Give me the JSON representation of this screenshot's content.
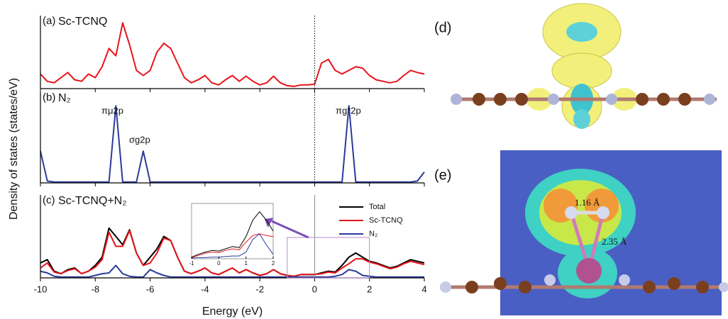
{
  "chart_data": [
    {
      "type": "line",
      "panel_label": "(a)",
      "title": "Sc-TCNQ",
      "xlim": [
        -10,
        4
      ],
      "ylim": [
        0,
        100
      ],
      "vline": 0,
      "x": [
        -10,
        -9.75,
        -9.5,
        -9.25,
        -9,
        -8.75,
        -8.5,
        -8.25,
        -8,
        -7.75,
        -7.5,
        -7.25,
        -7,
        -6.75,
        -6.5,
        -6.25,
        -6,
        -5.75,
        -5.5,
        -5.25,
        -5,
        -4.75,
        -4.5,
        -4.25,
        -4,
        -3.75,
        -3.5,
        -3.25,
        -3,
        -2.75,
        -2.5,
        -2.25,
        -2,
        -1.75,
        -1.5,
        -1.25,
        -1,
        -0.75,
        -0.5,
        -0.25,
        0,
        0.25,
        0.5,
        0.75,
        1,
        1.25,
        1.5,
        1.75,
        2,
        2.25,
        2.5,
        2.75,
        3,
        3.25,
        3.5,
        3.75,
        4
      ],
      "series": [
        {
          "color": "#e8141c",
          "values": [
            20,
            10,
            8,
            15,
            22,
            12,
            10,
            20,
            15,
            30,
            55,
            45,
            90,
            60,
            25,
            18,
            25,
            50,
            62,
            55,
            35,
            15,
            8,
            12,
            18,
            8,
            5,
            12,
            18,
            10,
            17,
            10,
            5,
            8,
            17,
            8,
            4,
            3,
            5,
            5,
            6,
            35,
            40,
            25,
            20,
            25,
            30,
            28,
            18,
            12,
            10,
            8,
            10,
            18,
            25,
            22,
            20
          ]
        }
      ]
    },
    {
      "type": "line",
      "panel_label": "(b)",
      "title": "N₂",
      "ylabel": "Density of states (states/eV)",
      "xlim": [
        -10,
        4
      ],
      "ylim": [
        0,
        100
      ],
      "vline": 0,
      "annotations": [
        "πμ2p",
        "σg2p",
        "πg*2p"
      ],
      "x": [
        -10,
        -9.75,
        -9.5,
        -9.25,
        -9,
        -8.75,
        -8.5,
        -8.25,
        -8,
        -7.75,
        -7.5,
        -7.25,
        -7,
        -6.75,
        -6.5,
        -6.25,
        -6,
        -5.75,
        -5.5,
        -5.25,
        -5,
        -4.75,
        -4.5,
        -4.25,
        -4,
        -3.75,
        -3.5,
        -3.25,
        -3,
        -2.75,
        -2.5,
        -2.25,
        -2,
        -1.75,
        -1.5,
        -1.25,
        -1,
        -0.75,
        -0.5,
        -0.25,
        0,
        0.25,
        0.5,
        0.75,
        1,
        1.25,
        1.5,
        1.75,
        2,
        2.25,
        2.5,
        2.75,
        3,
        3.25,
        3.5,
        3.75,
        4
      ],
      "series": [
        {
          "color": "#2b3a9a",
          "values": [
            35,
            2,
            1,
            1,
            1,
            1,
            1,
            1,
            1,
            1,
            1,
            85,
            1,
            1,
            1,
            35,
            1,
            1,
            1,
            1,
            1,
            1,
            1,
            1,
            1,
            1,
            1,
            1,
            1,
            1,
            1,
            1,
            1,
            1,
            1,
            1,
            1,
            1,
            1,
            1,
            1,
            1,
            1,
            1,
            1,
            85,
            1,
            1,
            1,
            1,
            1,
            1,
            1,
            1,
            1,
            2,
            12
          ]
        }
      ]
    },
    {
      "type": "line",
      "panel_label": "(c)",
      "title": "Sc-TCNQ+N₂",
      "xlabel": "Energy (eV)",
      "xlim": [
        -10,
        4
      ],
      "ylim": [
        0,
        100
      ],
      "vline": 0,
      "xticks": [
        -10,
        -8,
        -6,
        -4,
        -2,
        0,
        2,
        4
      ],
      "x": [
        -10,
        -9.75,
        -9.5,
        -9.25,
        -9,
        -8.75,
        -8.5,
        -8.25,
        -8,
        -7.75,
        -7.5,
        -7.25,
        -7,
        -6.75,
        -6.5,
        -6.25,
        -6,
        -5.75,
        -5.5,
        -5.25,
        -5,
        -4.75,
        -4.5,
        -4.25,
        -4,
        -3.75,
        -3.5,
        -3.25,
        -3,
        -2.75,
        -2.5,
        -2.25,
        -2,
        -1.75,
        -1.5,
        -1.25,
        -1,
        -0.75,
        -0.5,
        -0.25,
        0,
        0.25,
        0.5,
        0.75,
        1,
        1.25,
        1.5,
        1.75,
        2,
        2.25,
        2.5,
        2.75,
        3,
        3.25,
        3.5,
        3.75,
        4
      ],
      "series": [
        {
          "name": "Total",
          "color": "#000000",
          "values": [
            18,
            22,
            8,
            5,
            10,
            12,
            5,
            8,
            15,
            25,
            60,
            50,
            40,
            58,
            30,
            15,
            25,
            35,
            50,
            45,
            25,
            8,
            5,
            8,
            12,
            6,
            4,
            8,
            12,
            6,
            10,
            6,
            3,
            5,
            10,
            5,
            3,
            2,
            4,
            4,
            4,
            6,
            8,
            7,
            15,
            25,
            30,
            25,
            20,
            18,
            15,
            12,
            14,
            18,
            22,
            20,
            18
          ]
        },
        {
          "name": "Sc-TCNQ",
          "color": "#e8141c",
          "values": [
            12,
            18,
            7,
            5,
            9,
            11,
            5,
            8,
            13,
            22,
            55,
            38,
            38,
            57,
            30,
            15,
            18,
            30,
            48,
            45,
            25,
            8,
            5,
            8,
            12,
            6,
            4,
            8,
            12,
            6,
            10,
            6,
            3,
            5,
            10,
            5,
            3,
            2,
            4,
            4,
            4,
            5,
            7,
            6,
            12,
            17,
            23,
            23,
            19,
            17,
            14,
            11,
            13,
            17,
            20,
            18,
            16
          ]
        },
        {
          "name": "N₂",
          "color": "#2b3a9a",
          "values": [
            8,
            6,
            2,
            1,
            1,
            1,
            1,
            1,
            3,
            5,
            6,
            15,
            5,
            2,
            1,
            1,
            10,
            6,
            3,
            1,
            1,
            1,
            1,
            1,
            1,
            1,
            1,
            1,
            1,
            1,
            1,
            1,
            1,
            1,
            1,
            1,
            1,
            1,
            1,
            1,
            1,
            1,
            1,
            2,
            4,
            10,
            8,
            3,
            2,
            1,
            1,
            1,
            1,
            1,
            1,
            1,
            1
          ]
        }
      ]
    },
    {
      "type": "line",
      "xlim": [
        -1,
        2
      ],
      "ylim": [
        0,
        100
      ],
      "xticks": [
        -1,
        0,
        1,
        2
      ],
      "x": [
        -1,
        -0.75,
        -0.5,
        -0.25,
        0,
        0.25,
        0.5,
        0.75,
        1,
        1.25,
        1.5,
        1.75,
        2
      ],
      "series": [
        {
          "color": "#000000",
          "values": [
            3,
            8,
            12,
            15,
            14,
            18,
            22,
            20,
            40,
            70,
            85,
            70,
            50
          ]
        },
        {
          "color": "#e8141c",
          "values": [
            2,
            6,
            10,
            12,
            11,
            15,
            18,
            16,
            30,
            42,
            45,
            42,
            40
          ]
        },
        {
          "color": "#2b3a9a",
          "values": [
            1,
            2,
            2,
            3,
            3,
            4,
            5,
            5,
            12,
            35,
            45,
            25,
            8
          ]
        }
      ]
    }
  ],
  "structures": [
    {
      "label": "(d)"
    },
    {
      "label": "(e)",
      "annotations": [
        "1.16 Å",
        "2.35 Å"
      ]
    }
  ]
}
